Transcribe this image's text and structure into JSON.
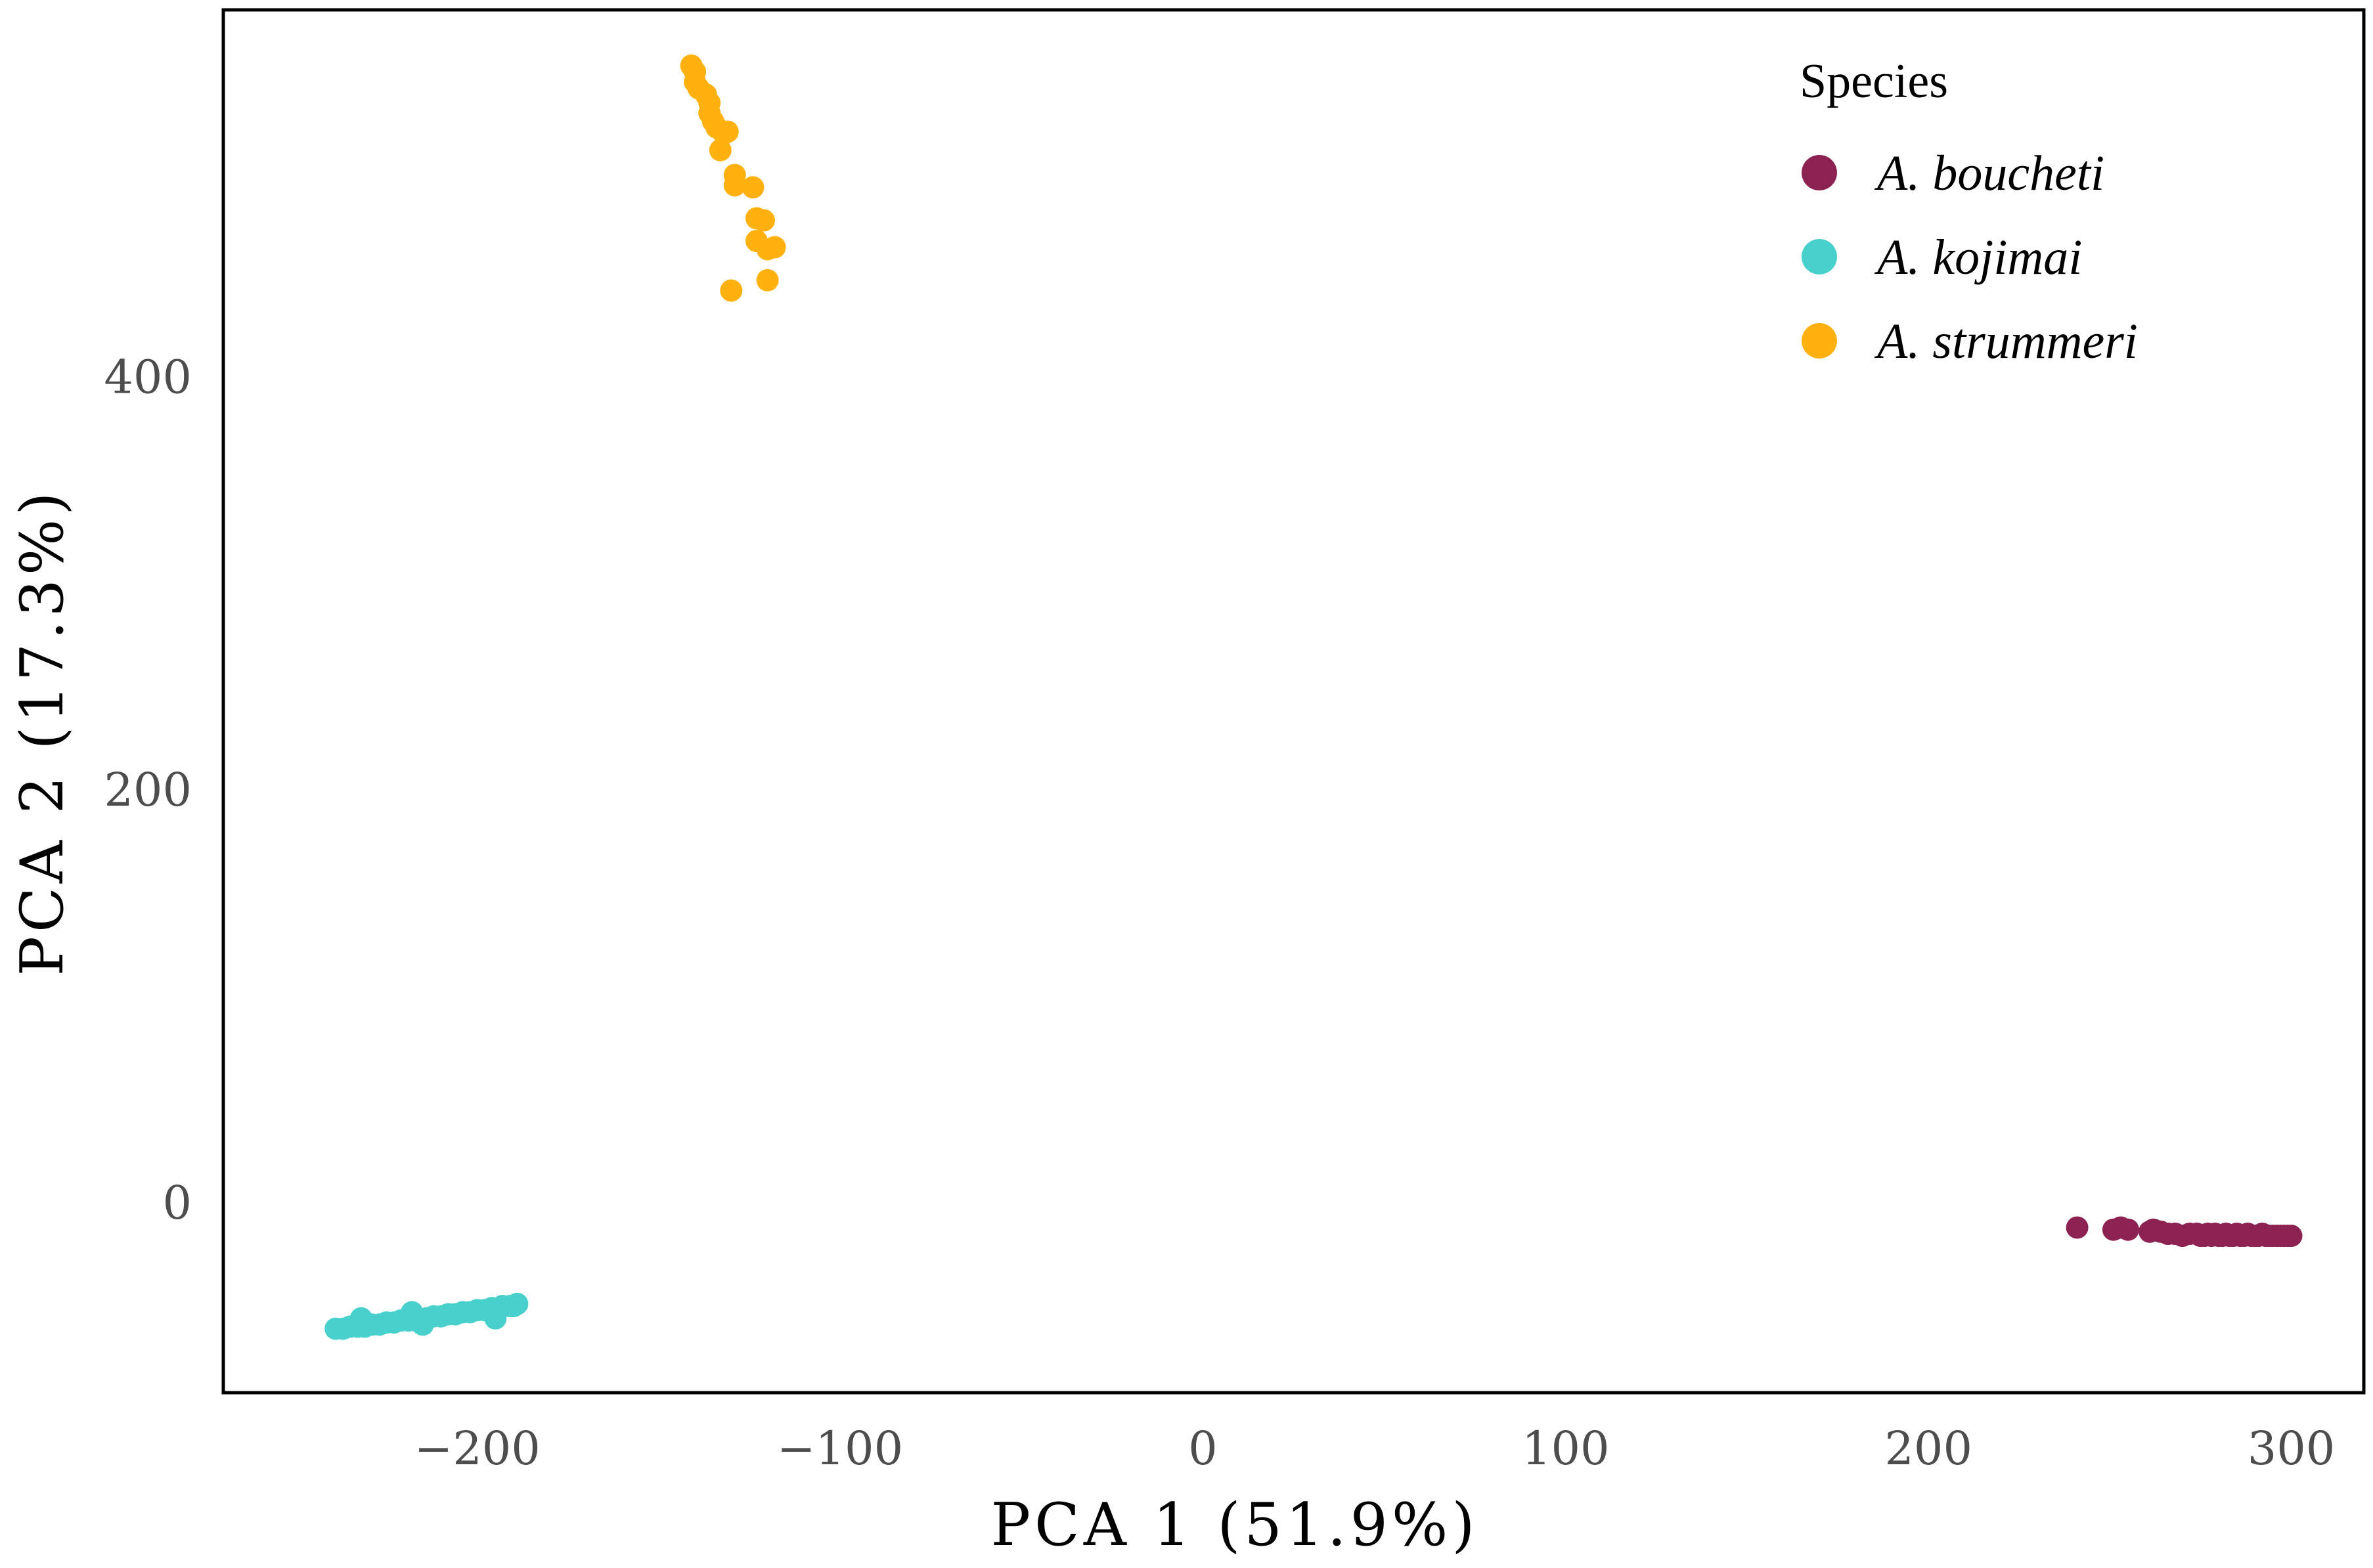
{
  "chart_data": {
    "type": "scatter",
    "title": "",
    "xlabel": "PCA 1 (51.9%)",
    "ylabel": "PCA 2 (17.3%)",
    "xlim": [
      -270,
      320
    ],
    "ylim": [
      -92,
      578
    ],
    "xticks": [
      -200,
      -100,
      0,
      100,
      200,
      300
    ],
    "xtick_labels": [
      "−200",
      "−100",
      "0",
      "100",
      "200",
      "300"
    ],
    "yticks": [
      0,
      200,
      400
    ],
    "ytick_labels": [
      "0",
      "200",
      "400"
    ],
    "grid": false,
    "legend": {
      "title": "Species",
      "position": "top-right"
    },
    "series": [
      {
        "name": "A. boucheti",
        "color": "#8B2252",
        "points": [
          [
            241,
            -12
          ],
          [
            251,
            -13
          ],
          [
            253,
            -12
          ],
          [
            255,
            -13
          ],
          [
            261,
            -14
          ],
          [
            262,
            -13
          ],
          [
            264,
            -14
          ],
          [
            266,
            -15
          ],
          [
            268,
            -15
          ],
          [
            270,
            -16
          ],
          [
            272,
            -15
          ],
          [
            274,
            -15
          ],
          [
            275,
            -16
          ],
          [
            276,
            -16
          ],
          [
            277,
            -15
          ],
          [
            278,
            -16
          ],
          [
            279,
            -15
          ],
          [
            280,
            -16
          ],
          [
            281,
            -16
          ],
          [
            282,
            -15
          ],
          [
            283,
            -16
          ],
          [
            284,
            -16
          ],
          [
            285,
            -15
          ],
          [
            286,
            -16
          ],
          [
            287,
            -16
          ],
          [
            288,
            -15
          ],
          [
            289,
            -16
          ],
          [
            290,
            -16
          ],
          [
            291,
            -16
          ],
          [
            292,
            -15
          ],
          [
            293,
            -16
          ],
          [
            294,
            -16
          ],
          [
            295,
            -16
          ],
          [
            296,
            -16
          ],
          [
            297,
            -16
          ],
          [
            298,
            -16
          ],
          [
            299,
            -16
          ],
          [
            300,
            -16
          ]
        ]
      },
      {
        "name": "A. kojimai",
        "color": "#48D1CC",
        "points": [
          [
            -239,
            -61
          ],
          [
            -237,
            -61
          ],
          [
            -235,
            -60
          ],
          [
            -233,
            -60
          ],
          [
            -232,
            -56
          ],
          [
            -231,
            -60
          ],
          [
            -229,
            -59
          ],
          [
            -227,
            -59
          ],
          [
            -225,
            -58
          ],
          [
            -223,
            -58
          ],
          [
            -221,
            -57
          ],
          [
            -219,
            -57
          ],
          [
            -218,
            -53
          ],
          [
            -217,
            -57
          ],
          [
            -215,
            -59
          ],
          [
            -214,
            -56
          ],
          [
            -212,
            -55
          ],
          [
            -210,
            -55
          ],
          [
            -208,
            -54
          ],
          [
            -206,
            -54
          ],
          [
            -204,
            -53
          ],
          [
            -202,
            -53
          ],
          [
            -200,
            -52
          ],
          [
            -198,
            -52
          ],
          [
            -196,
            -51
          ],
          [
            -195,
            -56
          ],
          [
            -194,
            -51
          ],
          [
            -193,
            -50
          ],
          [
            -191,
            -50
          ],
          [
            -190,
            -50
          ],
          [
            -189,
            -49
          ]
        ]
      },
      {
        "name": "A. strummeri",
        "color": "#FFB20F",
        "points": [
          [
            -141,
            551
          ],
          [
            -140,
            548
          ],
          [
            -140,
            543
          ],
          [
            -139,
            540
          ],
          [
            -137,
            537
          ],
          [
            -136,
            533
          ],
          [
            -136,
            528
          ],
          [
            -135,
            524
          ],
          [
            -134,
            521
          ],
          [
            -133,
            510
          ],
          [
            -132,
            518
          ],
          [
            -131,
            519
          ],
          [
            -129,
            493
          ],
          [
            -129,
            498
          ],
          [
            -124,
            492
          ],
          [
            -123,
            477
          ],
          [
            -123,
            466
          ],
          [
            -121,
            476
          ],
          [
            -120,
            462
          ],
          [
            -118,
            463
          ],
          [
            -120,
            447
          ],
          [
            -130,
            442
          ]
        ]
      }
    ]
  }
}
